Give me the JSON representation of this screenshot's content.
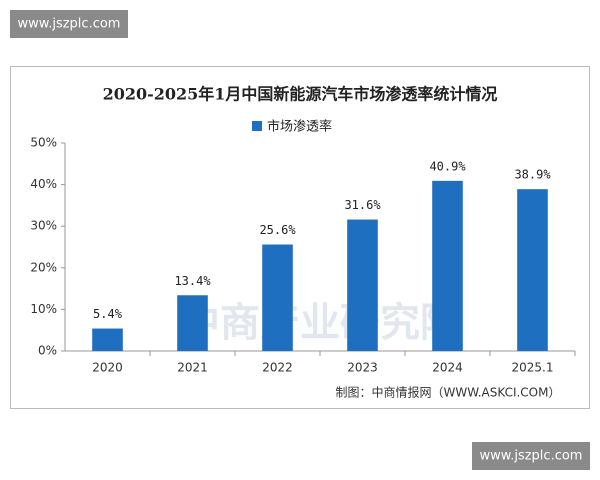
{
  "watermarks": [
    "www.jszplc.com",
    "www.jszplc.com"
  ],
  "chart_data": {
    "type": "bar",
    "title": "2020-2025年1月中国新能源汽车市场渗透率统计情况",
    "background_text": "中商产业研究院",
    "source": "制图：中商情报网（WWW.ASKCI.COM）",
    "categories": [
      "2020",
      "2021",
      "2022",
      "2023",
      "2024",
      "2025.1"
    ],
    "series": [
      {
        "name": "市场渗透率",
        "color": "#1f6fc0",
        "values": [
          5.4,
          13.4,
          25.6,
          31.6,
          40.9,
          38.9
        ],
        "value_labels": [
          "5.4%",
          "13.4%",
          "25.6%",
          "31.6%",
          "40.9%",
          "38.9%"
        ]
      }
    ],
    "ylim": [
      0,
      50
    ],
    "yticks": [
      {
        "value": 0,
        "label": "0%"
      },
      {
        "value": 10,
        "label": "10%"
      },
      {
        "value": 20,
        "label": "20%"
      },
      {
        "value": 30,
        "label": "30%"
      },
      {
        "value": 40,
        "label": "40%"
      },
      {
        "value": 50,
        "label": "50%"
      }
    ],
    "grid": false
  }
}
